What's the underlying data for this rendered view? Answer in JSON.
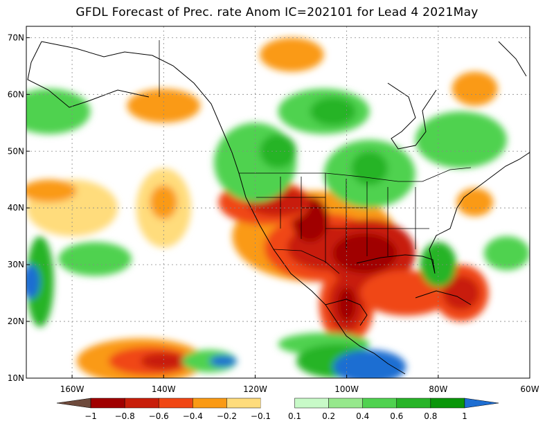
{
  "title": "GFDL Forecast of Prec. rate Anom IC=202101 for Lead 4 2021May",
  "map": {
    "lon_min": -170,
    "lon_max": -60,
    "lat_min": 10,
    "lat_max": 72,
    "lat_ticks": [
      {
        "value": 70,
        "label": "70N"
      },
      {
        "value": 60,
        "label": "60N"
      },
      {
        "value": 50,
        "label": "50N"
      },
      {
        "value": 40,
        "label": "40N"
      },
      {
        "value": 30,
        "label": "30N"
      },
      {
        "value": 20,
        "label": "20N"
      },
      {
        "value": 10,
        "label": "10N"
      }
    ],
    "lon_ticks": [
      {
        "value": -160,
        "label": "160W"
      },
      {
        "value": -140,
        "label": "140W"
      },
      {
        "value": -120,
        "label": "120W"
      },
      {
        "value": -100,
        "label": "100W"
      },
      {
        "value": -80,
        "label": "80W"
      },
      {
        "value": -60,
        "label": "60W"
      }
    ]
  },
  "anomaly_regions": [
    {
      "lon": -107,
      "lat": 35,
      "rx": 18,
      "ry": 8,
      "level": -0.4
    },
    {
      "lon": -105,
      "lat": 33,
      "rx": 13,
      "ry": 6,
      "level": -0.6
    },
    {
      "lon": -104,
      "lat": 33,
      "rx": 9,
      "ry": 4,
      "level": -0.8
    },
    {
      "lon": -100,
      "lat": 23,
      "rx": 6,
      "ry": 7,
      "level": -0.6
    },
    {
      "lon": -100,
      "lat": 23,
      "rx": 4,
      "ry": 5,
      "level": -0.8
    },
    {
      "lon": -100,
      "lat": 23,
      "rx": 2,
      "ry": 3,
      "level": -1
    },
    {
      "lon": -95,
      "lat": 32,
      "rx": 10,
      "ry": 6,
      "level": -0.8
    },
    {
      "lon": -96,
      "lat": 32,
      "rx": 7,
      "ry": 3.5,
      "level": -1
    },
    {
      "lon": -108,
      "lat": 38,
      "rx": 4,
      "ry": 4,
      "level": -1
    },
    {
      "lon": -118,
      "lat": 41,
      "rx": 10,
      "ry": 4,
      "level": -0.6
    },
    {
      "lon": -115,
      "lat": 41,
      "rx": 7,
      "ry": 2.5,
      "level": -0.8
    },
    {
      "lon": -87,
      "lat": 25,
      "rx": 10,
      "ry": 4,
      "level": -0.6
    },
    {
      "lon": -75,
      "lat": 25,
      "rx": 6,
      "ry": 5,
      "level": -0.6
    },
    {
      "lon": -75,
      "lat": 25,
      "rx": 4,
      "ry": 3,
      "level": -0.8
    },
    {
      "lon": -145,
      "lat": 13,
      "rx": 14,
      "ry": 4,
      "level": -0.4
    },
    {
      "lon": -143,
      "lat": 13,
      "rx": 9,
      "ry": 2.5,
      "level": -0.6
    },
    {
      "lon": -140,
      "lat": 13,
      "rx": 5,
      "ry": 1.5,
      "level": -0.8
    },
    {
      "lon": -140,
      "lat": 40,
      "rx": 6,
      "ry": 7,
      "level": -0.2
    },
    {
      "lon": -140,
      "lat": 41,
      "rx": 3,
      "ry": 3,
      "level": -0.4
    },
    {
      "lon": -160,
      "lat": 40,
      "rx": 10,
      "ry": 5,
      "level": -0.2
    },
    {
      "lon": -165,
      "lat": 43,
      "rx": 6,
      "ry": 2,
      "level": -0.4
    },
    {
      "lon": -140,
      "lat": 58,
      "rx": 8,
      "ry": 3,
      "level": -0.4
    },
    {
      "lon": -112,
      "lat": 67,
      "rx": 7,
      "ry": 3,
      "level": -0.4
    },
    {
      "lon": -72,
      "lat": 61,
      "rx": 5,
      "ry": 3,
      "level": -0.4
    },
    {
      "lon": -72,
      "lat": 41,
      "rx": 4,
      "ry": 2.5,
      "level": -0.4
    },
    {
      "lon": -105,
      "lat": 16,
      "rx": 10,
      "ry": 2,
      "level": 0.4
    },
    {
      "lon": -102,
      "lat": 13,
      "rx": 9,
      "ry": 3,
      "level": 0.6
    },
    {
      "lon": -95,
      "lat": 12,
      "rx": 8,
      "ry": 3,
      "level": 1
    },
    {
      "lon": -130,
      "lat": 13,
      "rx": 6,
      "ry": 2,
      "level": 0.4
    },
    {
      "lon": -127,
      "lat": 13,
      "rx": 3,
      "ry": 1,
      "level": 1
    },
    {
      "lon": -120,
      "lat": 48,
      "rx": 9,
      "ry": 7,
      "level": 0.4
    },
    {
      "lon": -115,
      "lat": 50,
      "rx": 4,
      "ry": 3,
      "level": 0.6
    },
    {
      "lon": -105,
      "lat": 57,
      "rx": 10,
      "ry": 4,
      "level": 0.4
    },
    {
      "lon": -103,
      "lat": 57,
      "rx": 5,
      "ry": 2.5,
      "level": 0.6
    },
    {
      "lon": -95,
      "lat": 46,
      "rx": 10,
      "ry": 6,
      "level": 0.4
    },
    {
      "lon": -95,
      "lat": 47,
      "rx": 4,
      "ry": 3,
      "level": 0.6
    },
    {
      "lon": -165,
      "lat": 57,
      "rx": 9,
      "ry": 4,
      "level": 0.4
    },
    {
      "lon": -167,
      "lat": 27,
      "rx": 3,
      "ry": 8,
      "level": 0.6
    },
    {
      "lon": -169,
      "lat": 27,
      "rx": 2,
      "ry": 3,
      "level": 1
    },
    {
      "lon": -155,
      "lat": 31,
      "rx": 8,
      "ry": 3,
      "level": 0.4
    },
    {
      "lon": -80,
      "lat": 30,
      "rx": 4,
      "ry": 4,
      "level": 0.6
    },
    {
      "lon": -75,
      "lat": 52,
      "rx": 10,
      "ry": 5,
      "level": 0.4
    },
    {
      "lon": -65,
      "lat": 32,
      "rx": 5,
      "ry": 3,
      "level": 0.4
    }
  ],
  "colorbar": {
    "levels": [
      -1,
      -0.8,
      -0.6,
      -0.4,
      -0.2,
      -0.1,
      0.1,
      0.2,
      0.4,
      0.6,
      0.8,
      1
    ],
    "labels": [
      "−1",
      "−0.8",
      "−0.6",
      "−0.4",
      "−0.2",
      "−0.1",
      "0.1",
      "0.2",
      "0.4",
      "0.6",
      "0.8",
      "1"
    ],
    "colors": [
      "#6e4a3c",
      "#a00000",
      "#c81e0a",
      "#f04614",
      "#fa9a14",
      "#ffdc7c",
      "#ffffff",
      "#c8fac8",
      "#96e88c",
      "#50d250",
      "#28b428",
      "#0a960a",
      "#1e6ed2"
    ]
  }
}
